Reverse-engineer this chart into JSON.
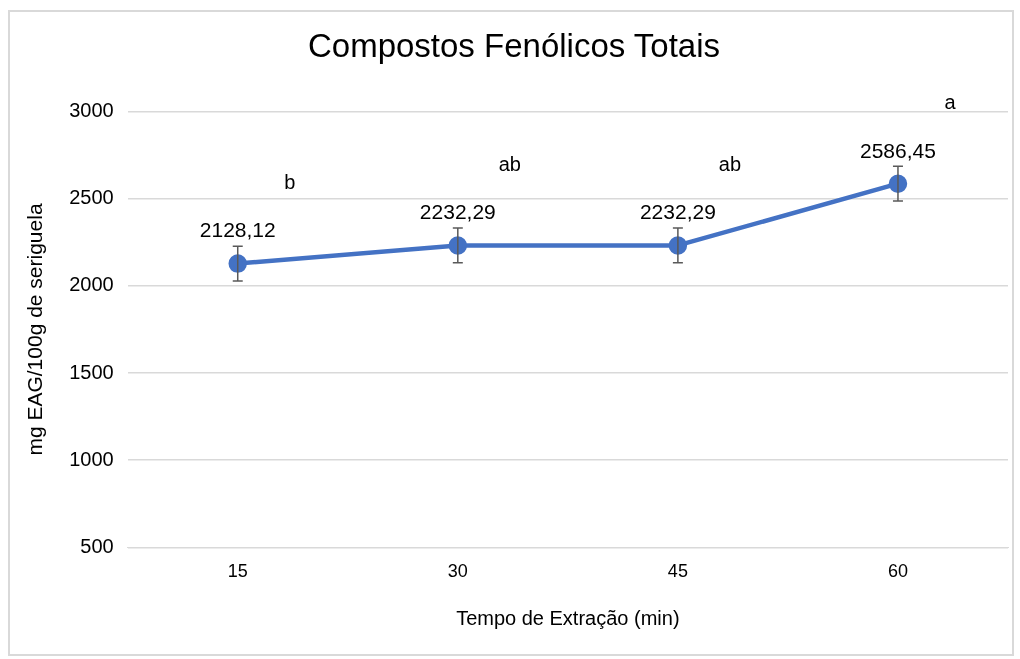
{
  "chart_data": {
    "type": "line",
    "title": "Compostos Fenólicos Totais",
    "xlabel": "Tempo de Extração (min)",
    "ylabel": "mg EAG/100g de seriguela",
    "categories": [
      "15",
      "30",
      "45",
      "60"
    ],
    "values": [
      2128.12,
      2232.29,
      2232.29,
      2586.45
    ],
    "value_labels": [
      "2128,12",
      "2232,29",
      "2232,29",
      "2586,45"
    ],
    "errors": [
      100,
      100,
      100,
      100
    ],
    "color": "#4472c4",
    "marker": "circle",
    "line_style": "solid",
    "ylim": [
      500,
      3000
    ],
    "yticks": [
      500,
      1000,
      1500,
      2000,
      2500,
      3000
    ],
    "grid": "y",
    "legend": false,
    "annotations": [
      "b",
      "ab",
      "ab",
      "a"
    ]
  }
}
